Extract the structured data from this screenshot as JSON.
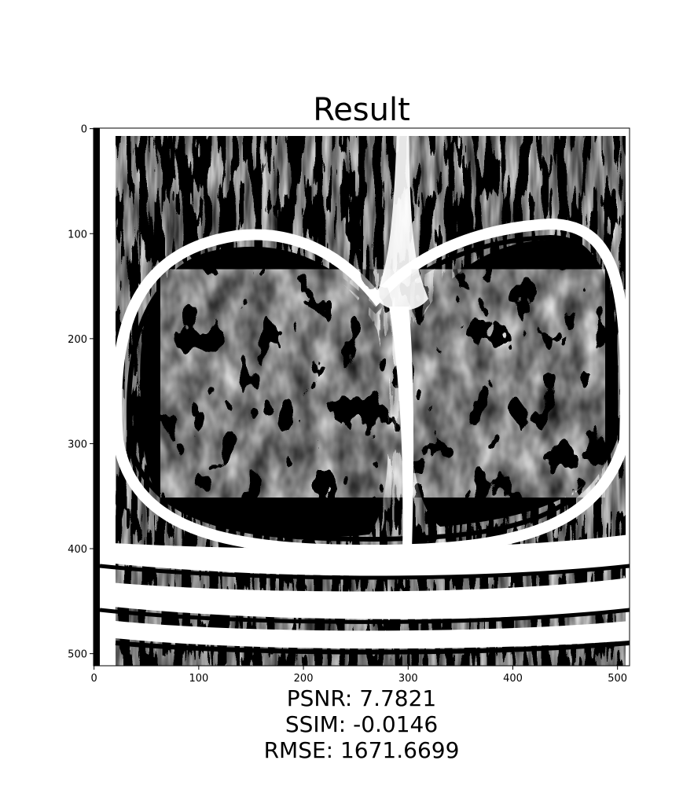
{
  "figure": {
    "title": "Result",
    "metrics": {
      "psnr": "PSNR: 7.7821",
      "ssim": "SSIM: -0.0146",
      "rmse": "RMSE: 1671.6699"
    }
  },
  "image": {
    "description_colors": {
      "dark": "#000000",
      "light": "#ffffff"
    },
    "x_ticks": [
      "0",
      "100",
      "200",
      "300",
      "400",
      "500"
    ],
    "y_ticks": [
      "0",
      "100",
      "200",
      "300",
      "400",
      "500"
    ],
    "x_range": [
      0,
      511
    ],
    "y_range": [
      0,
      511
    ]
  }
}
